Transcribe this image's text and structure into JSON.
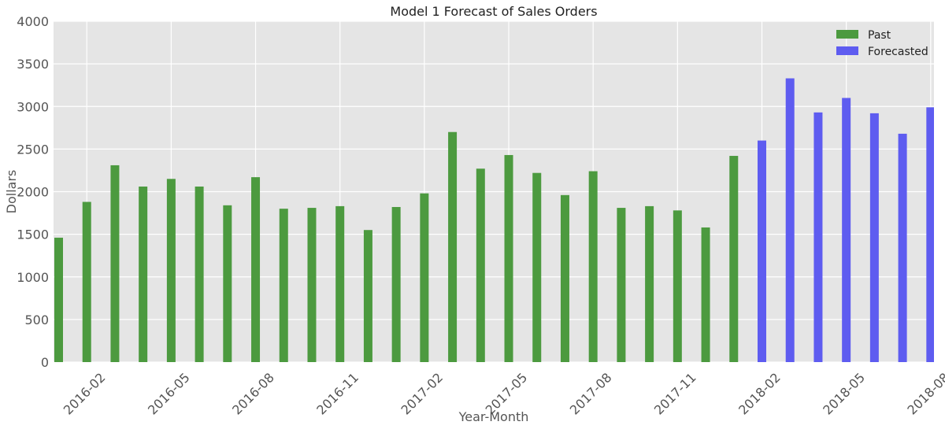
{
  "chart_data": {
    "type": "bar",
    "title": "Model 1 Forecast of Sales Orders",
    "xlabel": "Year-Month",
    "ylabel": "Dollars",
    "ylim": [
      0,
      4000
    ],
    "yticks": [
      0,
      500,
      1000,
      1500,
      2000,
      2500,
      3000,
      3500,
      4000
    ],
    "x_tick_labels": [
      "2016-02",
      "2016-05",
      "2016-08",
      "2016-11",
      "2017-02",
      "2017-05",
      "2017-08",
      "2017-11",
      "2018-02",
      "2018-05",
      "2018-08"
    ],
    "grid": true,
    "legend_position": "top-right",
    "series": [
      {
        "name": "Past",
        "color": "#4c9a3f",
        "x": [
          "2016-01",
          "2016-02",
          "2016-03",
          "2016-04",
          "2016-05",
          "2016-06",
          "2016-07",
          "2016-08",
          "2016-09",
          "2016-10",
          "2016-11",
          "2016-12",
          "2017-01",
          "2017-02",
          "2017-03",
          "2017-04",
          "2017-05",
          "2017-06",
          "2017-07",
          "2017-08",
          "2017-09",
          "2017-10",
          "2017-11",
          "2017-12",
          "2018-01"
        ],
        "values": [
          1460,
          1880,
          2310,
          2060,
          2150,
          2060,
          1840,
          2170,
          1800,
          1810,
          1830,
          1550,
          1820,
          1980,
          2700,
          2270,
          2430,
          2220,
          1960,
          2240,
          1810,
          1830,
          1780,
          1580,
          2420
        ]
      },
      {
        "name": "Forecasted",
        "color": "#5e5cf0",
        "x": [
          "2018-02",
          "2018-03",
          "2018-04",
          "2018-05",
          "2018-06",
          "2018-07",
          "2018-08"
        ],
        "values": [
          2600,
          3330,
          2930,
          3100,
          2920,
          2680,
          2990
        ]
      }
    ]
  }
}
